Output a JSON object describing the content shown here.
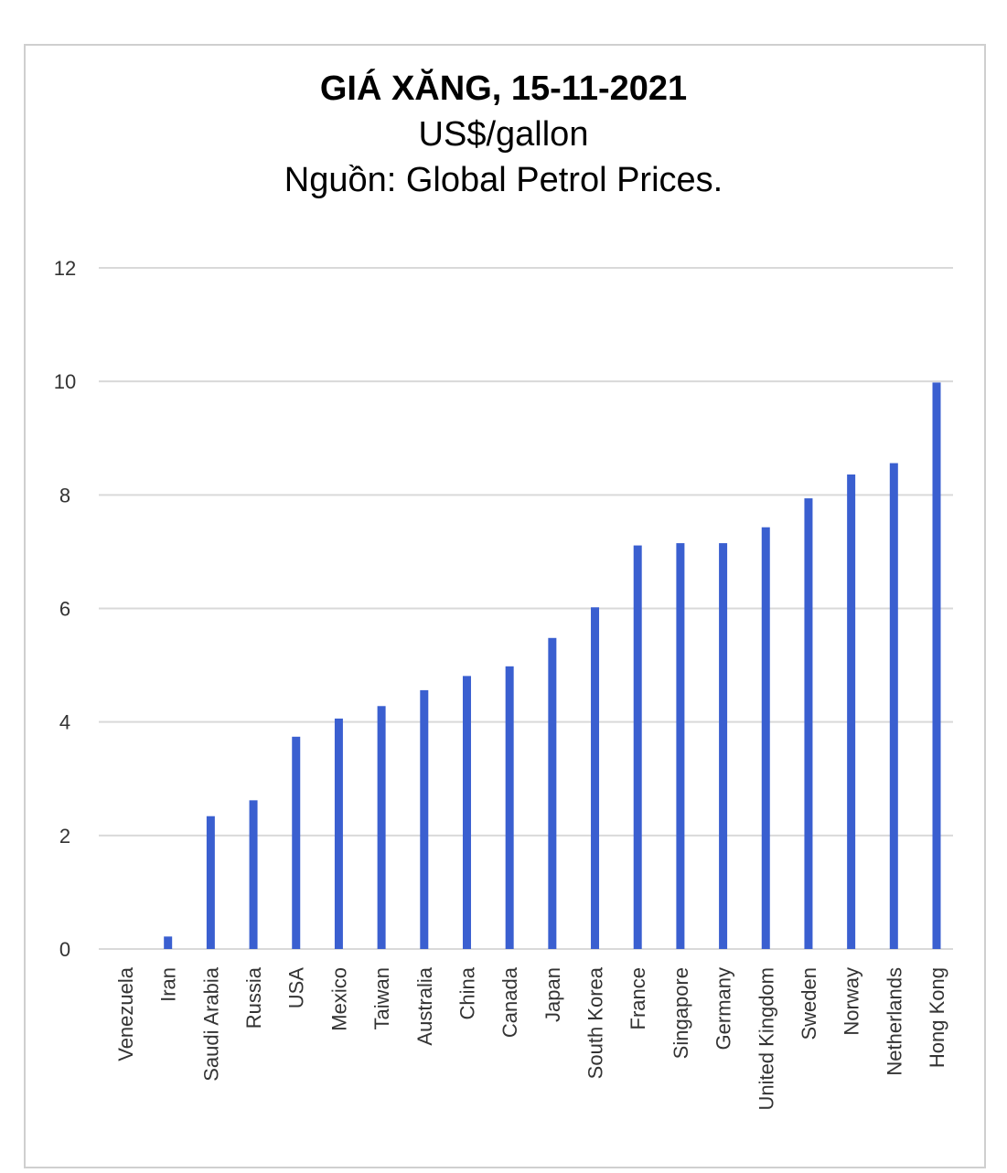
{
  "chart_data": {
    "type": "bar",
    "title": "GIÁ XĂNG, 15-11-2021",
    "subtitle": "US$/gallon",
    "source": "Nguồn: Global Petrol Prices.",
    "categories": [
      "Venezuela",
      "Iran",
      "Saudi Arabia",
      "Russia",
      "USA",
      "Mexico",
      "Taiwan",
      "Australia",
      "China",
      "Canada",
      "Japan",
      "South Korea",
      "France",
      "Singapore",
      "Germany",
      "United Kingdom",
      "Sweden",
      "Norway",
      "Netherlands",
      "Hong Kong"
    ],
    "values": [
      0.0,
      0.22,
      2.34,
      2.62,
      3.74,
      4.06,
      4.28,
      4.56,
      4.81,
      4.98,
      5.48,
      6.02,
      7.11,
      7.15,
      7.15,
      7.43,
      7.94,
      8.36,
      8.56,
      9.98
    ],
    "yticks": [
      0,
      2,
      4,
      6,
      8,
      10,
      12
    ],
    "ylim": [
      0,
      12
    ],
    "grid": true,
    "legend": "none",
    "bar_color": "#3a5fd0",
    "grid_color": "#d9d9d9"
  }
}
